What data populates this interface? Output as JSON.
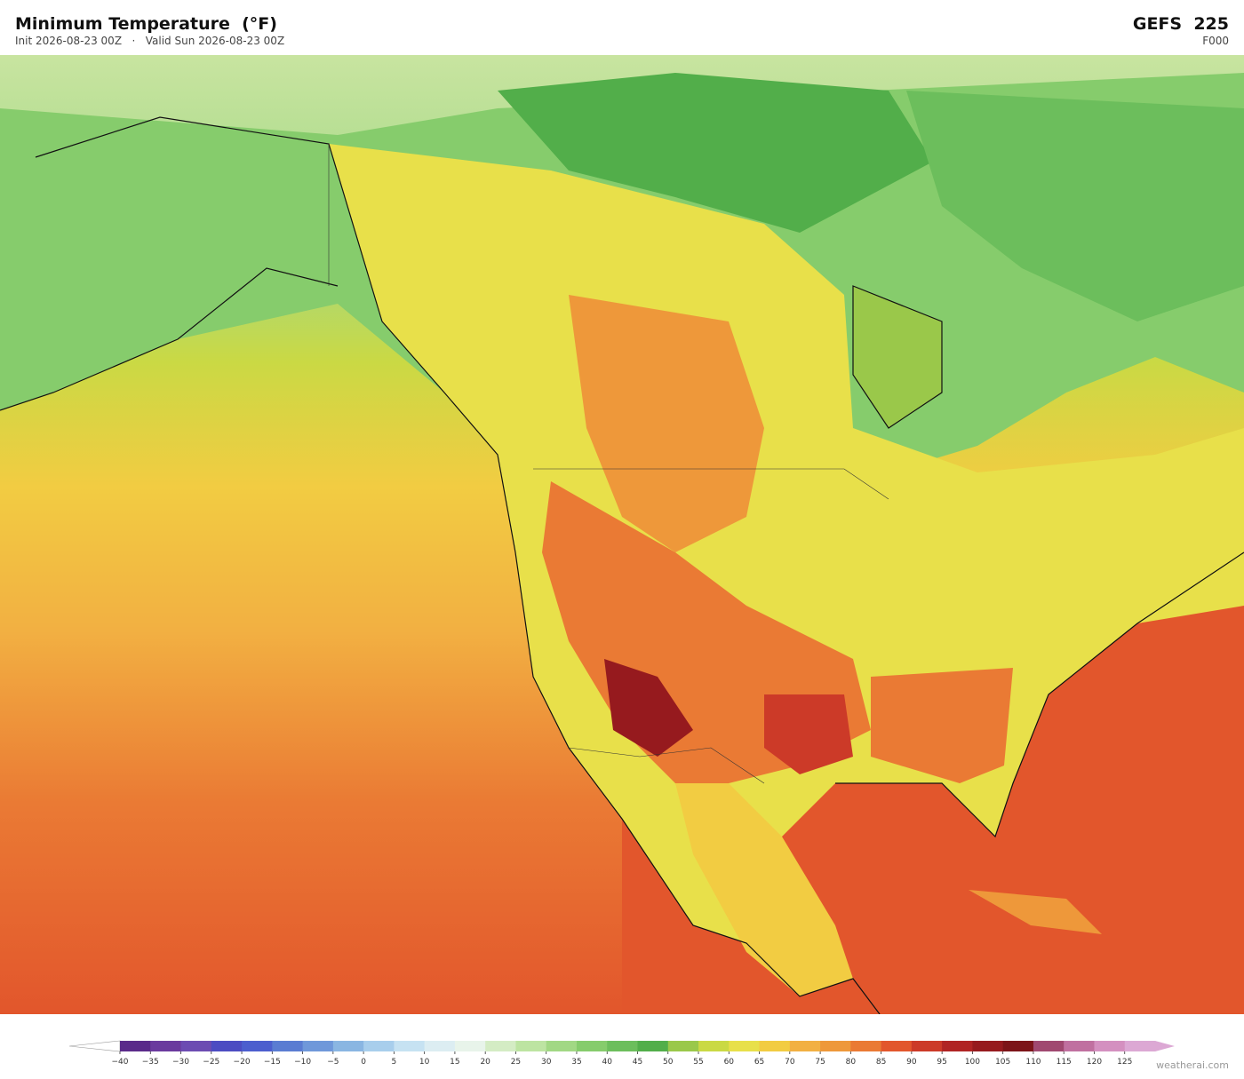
{
  "header": {
    "title": "Minimum Temperature  (°F)",
    "subtitle": "Init 2026-08-23 00Z   ·   Valid Sun 2026-08-23 00Z",
    "model": "GEFS  225",
    "forecast_hour": "F000"
  },
  "colorbar": {
    "range": [
      -40,
      130
    ],
    "step": 5,
    "colors": [
      "#5a2a8a",
      "#6a3a9e",
      "#6c4cb2",
      "#4c4cc2",
      "#4c5ece",
      "#5a7cd2",
      "#6f98da",
      "#8ab6e2",
      "#a8ceec",
      "#c6e2f2",
      "#dcedf2",
      "#e8f4ea",
      "#d4ecc4",
      "#bde4a2",
      "#a2d884",
      "#86cc6c",
      "#6cbe5c",
      "#52ae4a",
      "#9ac84a",
      "#cad944",
      "#e8e04a",
      "#f2cc42",
      "#f2b042",
      "#ee983a",
      "#ea7a34",
      "#e2562c",
      "#cc3a28",
      "#b02424",
      "#961a1e",
      "#7c1418",
      "#a04870",
      "#c070a0",
      "#d490c0",
      "#dca8d4"
    ],
    "under_color": "#ffffff",
    "over_color": "#dca8d4",
    "ticks": [
      {
        "value": -40,
        "label": "−40"
      },
      {
        "value": -35,
        "label": "−35"
      },
      {
        "value": -30,
        "label": "−30"
      },
      {
        "value": -25,
        "label": "−25"
      },
      {
        "value": -20,
        "label": "−20"
      },
      {
        "value": -15,
        "label": "−15"
      },
      {
        "value": -10,
        "label": "−10"
      },
      {
        "value": -5,
        "label": "−5"
      },
      0,
      5,
      10,
      15,
      20,
      25,
      30,
      35,
      40,
      45,
      50,
      55,
      60,
      65,
      70,
      75,
      80,
      85,
      90,
      95,
      100,
      105,
      110,
      115,
      120,
      125
    ]
  },
  "footer": {
    "watermark": "weatherai.com"
  }
}
